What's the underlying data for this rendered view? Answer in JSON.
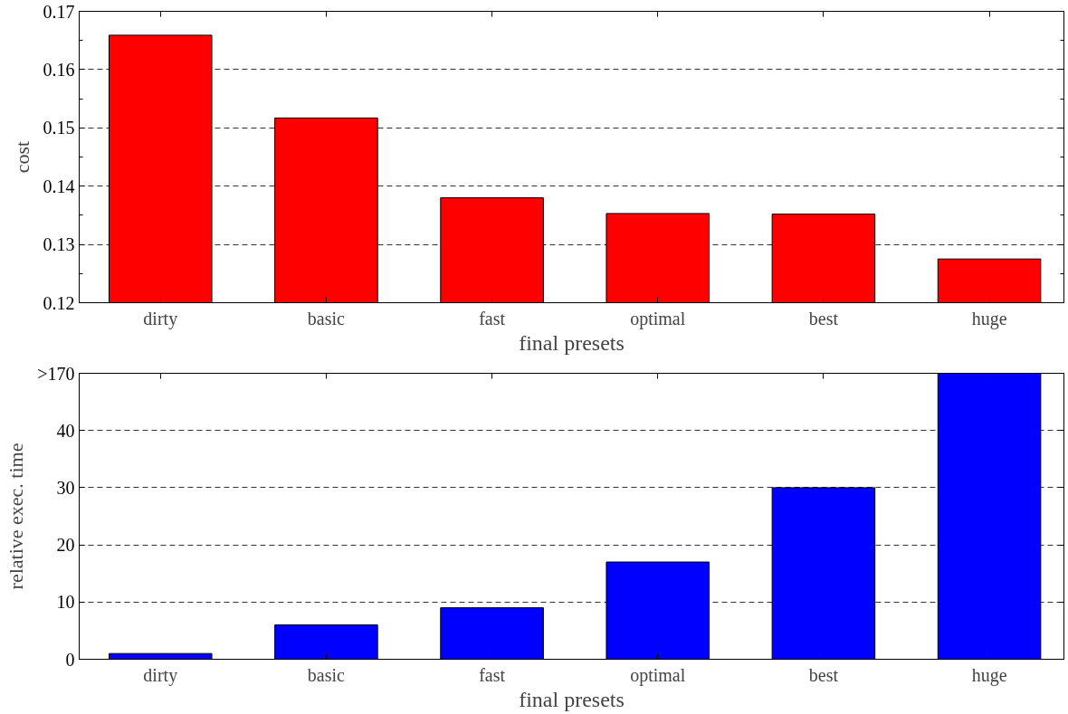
{
  "chart_data": [
    {
      "type": "bar",
      "categories": [
        "dirty",
        "basic",
        "fast",
        "optimal",
        "best",
        "huge"
      ],
      "values": [
        0.1659,
        0.1517,
        0.138,
        0.1353,
        0.1352,
        0.1275
      ],
      "color": "#ff0000",
      "xlabel": "final presets",
      "ylabel": "cost",
      "ylim": [
        0.12,
        0.17
      ],
      "yticks": [
        0.12,
        0.13,
        0.14,
        0.15,
        0.16,
        0.17
      ],
      "grid": "y"
    },
    {
      "type": "bar",
      "categories": [
        "dirty",
        "basic",
        "fast",
        "optimal",
        "best",
        "huge"
      ],
      "values": [
        1,
        6,
        9,
        17,
        30,
        50
      ],
      "color": "#0000ff",
      "xlabel": "final presets",
      "ylabel": "relative exec. time",
      "ylim": [
        0,
        50
      ],
      "yticks": [
        0,
        10,
        20,
        30,
        40,
        {
          "value": 50,
          "label": ">170"
        }
      ],
      "grid": "y"
    }
  ]
}
